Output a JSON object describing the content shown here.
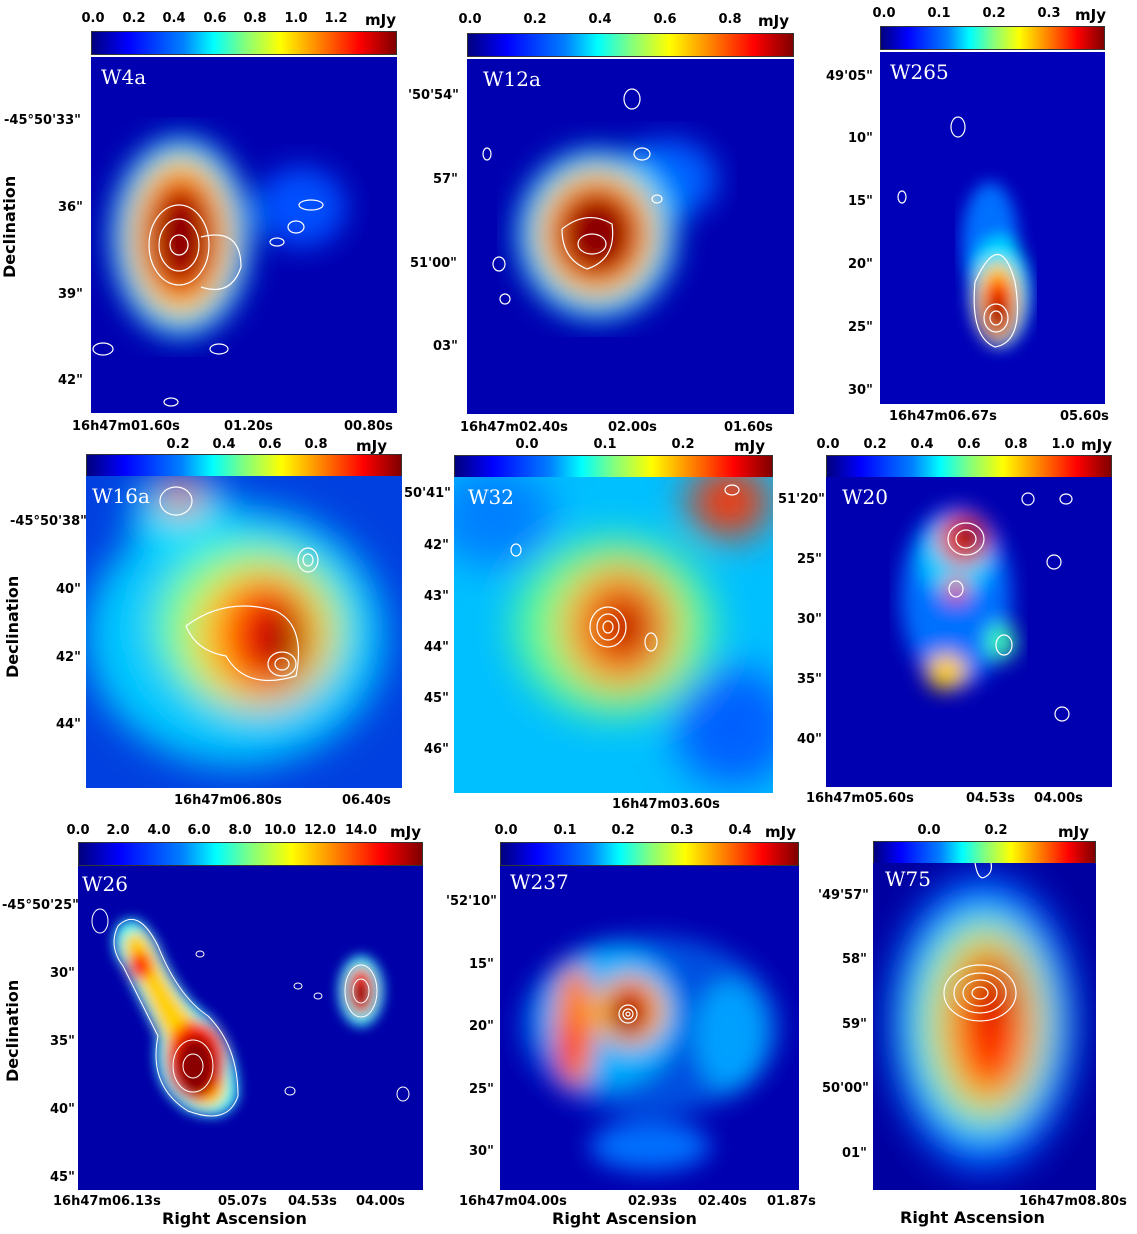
{
  "axis_labels": {
    "declination": "Declination",
    "right_ascension": "Right Ascension"
  },
  "unit": "mJy",
  "panels": {
    "W4a": {
      "name": "W4a",
      "cbar_ticks": [
        "0.0",
        "0.2",
        "0.4",
        "0.6",
        "0.8",
        "1.0",
        "1.2"
      ],
      "yticks": [
        "-45°50'33\"",
        "36\"",
        "39\"",
        "42\""
      ],
      "xticks": [
        "16h47m01.60s",
        "01.20s",
        "00.80s"
      ]
    },
    "W12a": {
      "name": "W12a",
      "cbar_ticks": [
        "0.0",
        "0.2",
        "0.4",
        "0.6",
        "0.8"
      ],
      "yticks": [
        "'50'54\"",
        "57\"",
        "51'00\"",
        "03\""
      ],
      "xticks": [
        "16h47m02.40s",
        "02.00s",
        "01.60s"
      ]
    },
    "W265": {
      "name": "W265",
      "cbar_ticks": [
        "0.0",
        "0.1",
        "0.2",
        "0.3"
      ],
      "yticks": [
        "49'05\"",
        "10\"",
        "15\"",
        "20\"",
        "25\"",
        "30\""
      ],
      "xticks": [
        "16h47m06.67s",
        "05.60s"
      ]
    },
    "W16a": {
      "name": "W16a",
      "cbar_ticks": [
        "0.2",
        "0.4",
        "0.6",
        "0.8"
      ],
      "yticks": [
        "-45°50'38\"",
        "40\"",
        "42\"",
        "44\""
      ],
      "xticks": [
        "16h47m06.80s",
        "06.40s"
      ]
    },
    "W32": {
      "name": "W32",
      "cbar_ticks": [
        "0.0",
        "0.1",
        "0.2"
      ],
      "yticks": [
        "50'41\"",
        "42\"",
        "43\"",
        "44\"",
        "45\"",
        "46\""
      ],
      "xticks": [
        "16h47m03.60s"
      ]
    },
    "W20": {
      "name": "W20",
      "cbar_ticks": [
        "0.0",
        "0.2",
        "0.4",
        "0.6",
        "0.8",
        "1.0"
      ],
      "yticks": [
        "51'20\"",
        "25\"",
        "30\"",
        "35\"",
        "40\""
      ],
      "xticks": [
        "16h47m05.60s",
        "04.53s",
        "04.00s"
      ]
    },
    "W26": {
      "name": "W26",
      "cbar_ticks": [
        "0.0",
        "2.0",
        "4.0",
        "6.0",
        "8.0",
        "10.0",
        "12.0",
        "14.0"
      ],
      "yticks": [
        "-45°50'25\"",
        "30\"",
        "35\"",
        "40\"",
        "45\""
      ],
      "xticks": [
        "16h47m06.13s",
        "05.07s",
        "04.53s",
        "04.00s"
      ]
    },
    "W237": {
      "name": "W237",
      "cbar_ticks": [
        "0.0",
        "0.1",
        "0.2",
        "0.3",
        "0.4"
      ],
      "yticks": [
        "'52'10\"",
        "15\"",
        "20\"",
        "25\"",
        "30\""
      ],
      "xticks": [
        "16h47m04.00s",
        "02.93s",
        "02.40s",
        "01.87s"
      ]
    },
    "W75": {
      "name": "W75",
      "cbar_ticks": [
        "0.0",
        "0.2"
      ],
      "yticks": [
        "'49'57\"",
        "58\"",
        "59\"",
        "50'00\"",
        "01\""
      ],
      "xticks": [
        "16h47m08.80s"
      ]
    }
  }
}
